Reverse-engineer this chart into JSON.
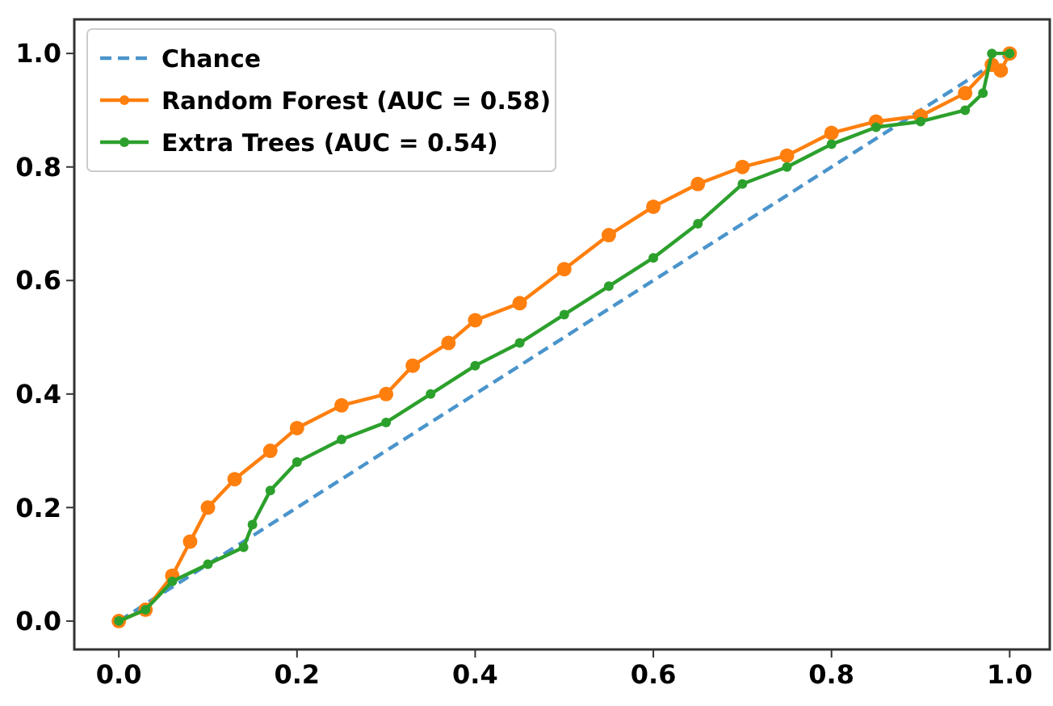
{
  "chart_data": {
    "type": "line",
    "xlim": [
      -0.05,
      1.045
    ],
    "ylim": [
      -0.05,
      1.06
    ],
    "xticks": [
      {
        "value": 0,
        "label": "0.0"
      },
      0.2,
      0.4,
      0.6,
      0.8,
      {
        "value": 1,
        "label": "1.0"
      }
    ],
    "yticks": [
      {
        "value": 0,
        "label": "0.0"
      },
      0.2,
      0.4,
      0.6,
      0.8,
      {
        "value": 1,
        "label": "1.0"
      }
    ],
    "grid": false,
    "legend": "top left",
    "series": [
      {
        "name": "Chance",
        "color": "#4a94cc",
        "line_style": "dashed",
        "marker": "none",
        "x": [
          0,
          1
        ],
        "values": [
          0,
          1
        ]
      },
      {
        "name": "Random Forest (AUC = 0.58)",
        "color": "#ff7f0e",
        "line_style": "solid",
        "marker": "circle",
        "x": [
          0,
          0.03,
          0.06,
          0.08,
          0.1,
          0.13,
          0.17,
          0.2,
          0.25,
          0.3,
          0.33,
          0.37,
          0.4,
          0.45,
          0.5,
          0.55,
          0.6,
          0.65,
          0.7,
          0.75,
          0.8,
          0.85,
          0.9,
          0.95,
          0.98,
          0.99,
          1
        ],
        "values": [
          0,
          0.02,
          0.08,
          0.14,
          0.2,
          0.25,
          0.3,
          0.34,
          0.38,
          0.4,
          0.45,
          0.49,
          0.53,
          0.56,
          0.62,
          0.68,
          0.73,
          0.77,
          0.8,
          0.82,
          0.86,
          0.88,
          0.89,
          0.93,
          0.98,
          0.97,
          1
        ]
      },
      {
        "name": "Extra Trees (AUC = 0.54)",
        "color": "#2ca02c",
        "line_style": "solid",
        "marker": "circle",
        "x": [
          0,
          0.03,
          0.06,
          0.1,
          0.14,
          0.15,
          0.17,
          0.2,
          0.25,
          0.3,
          0.35,
          0.4,
          0.45,
          0.5,
          0.55,
          0.6,
          0.65,
          0.7,
          0.75,
          0.8,
          0.85,
          0.9,
          0.95,
          0.97,
          0.98,
          1
        ],
        "values": [
          0,
          0.02,
          0.07,
          0.1,
          0.13,
          0.17,
          0.23,
          0.28,
          0.32,
          0.35,
          0.4,
          0.45,
          0.49,
          0.54,
          0.59,
          0.64,
          0.7,
          0.77,
          0.8,
          0.84,
          0.87,
          0.88,
          0.9,
          0.93,
          1,
          1
        ]
      }
    ]
  }
}
